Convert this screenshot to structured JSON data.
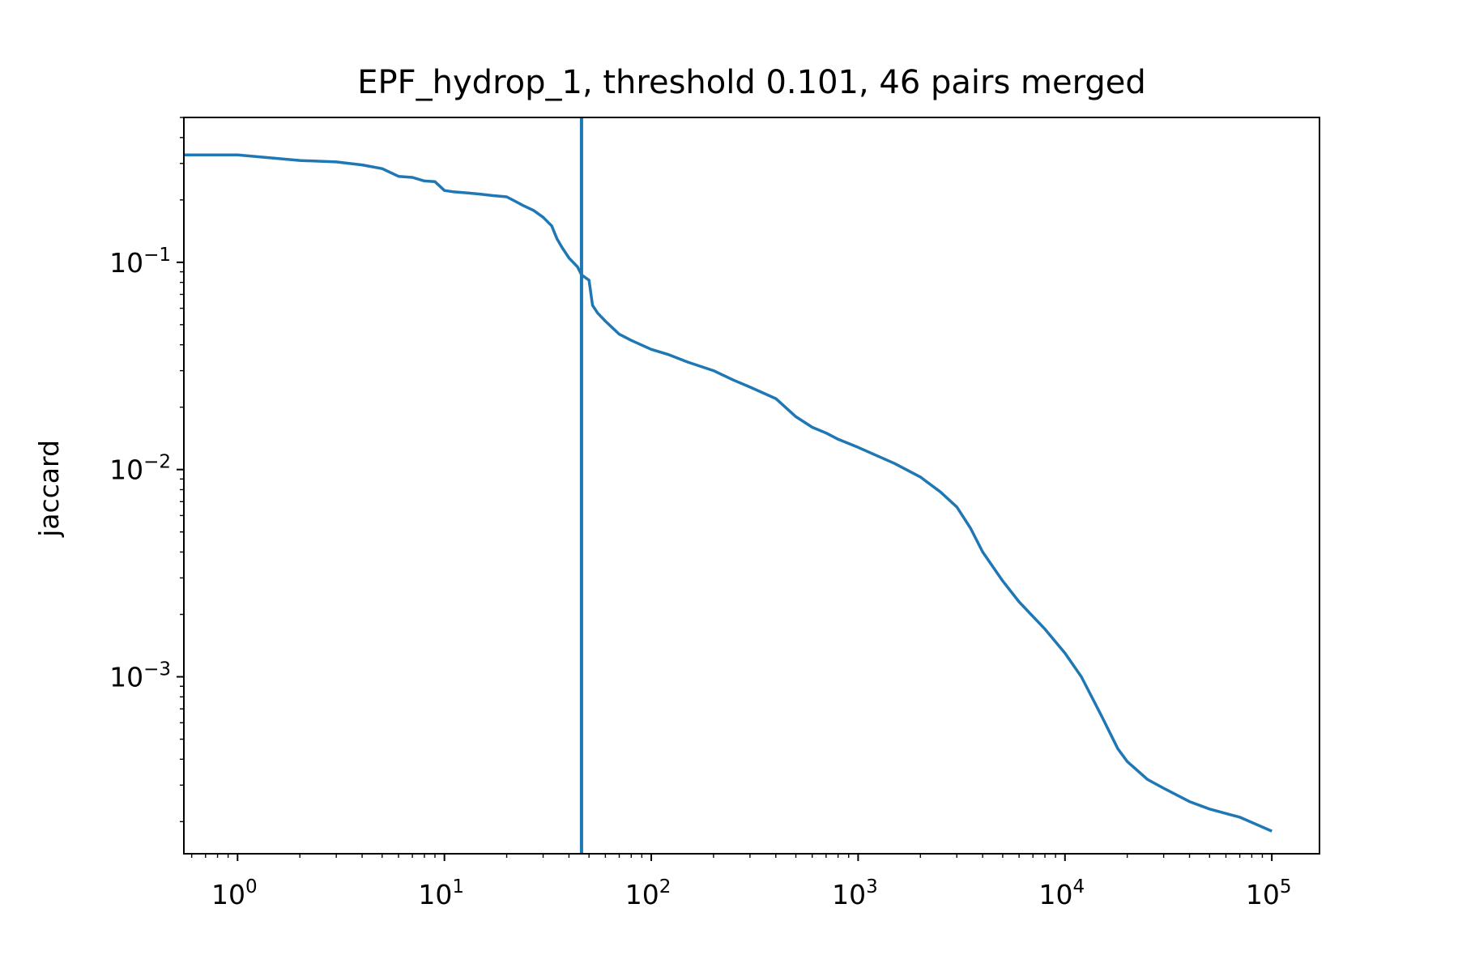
{
  "chart_data": {
    "type": "line",
    "title": "EPF_hydrop_1, threshold 0.101, 46 pairs merged",
    "xlabel": "",
    "ylabel": "jaccard",
    "xscale": "log",
    "yscale": "log",
    "xlim": [
      0.55,
      170000
    ],
    "ylim": [
      0.00014,
      0.5
    ],
    "grid": false,
    "colors": {
      "line": "#1f77b4",
      "axes": "#000000",
      "background": "#ffffff"
    },
    "x_ticks": [
      {
        "value": 1,
        "base": "10",
        "exp": "0"
      },
      {
        "value": 10,
        "base": "10",
        "exp": "1"
      },
      {
        "value": 100,
        "base": "10",
        "exp": "2"
      },
      {
        "value": 1000,
        "base": "10",
        "exp": "3"
      },
      {
        "value": 10000,
        "base": "10",
        "exp": "4"
      },
      {
        "value": 100000,
        "base": "10",
        "exp": "5"
      }
    ],
    "y_ticks": [
      {
        "value": 0.1,
        "base": "10",
        "exp": "−1"
      },
      {
        "value": 0.01,
        "base": "10",
        "exp": "−2"
      },
      {
        "value": 0.001,
        "base": "10",
        "exp": "−3"
      }
    ],
    "threshold_line": {
      "x": 46
    },
    "series": [
      {
        "x": [
          0.55,
          1,
          2,
          3,
          4,
          5,
          6,
          7,
          8,
          9,
          10,
          11,
          13,
          15,
          17,
          20,
          22,
          24,
          27,
          30,
          33,
          35,
          37,
          40,
          44,
          46,
          50,
          52,
          55,
          60,
          70,
          80,
          100,
          120,
          150,
          200,
          250,
          300,
          400,
          500,
          600,
          700,
          800,
          1000,
          1500,
          2000,
          2500,
          3000,
          3500,
          4000,
          5000,
          6000,
          8000,
          10000,
          12000,
          15000,
          18000,
          20000,
          25000,
          30000,
          40000,
          50000,
          70000,
          100000
        ],
        "y": [
          0.33,
          0.33,
          0.31,
          0.305,
          0.295,
          0.283,
          0.26,
          0.257,
          0.247,
          0.245,
          0.222,
          0.219,
          0.216,
          0.213,
          0.21,
          0.207,
          0.197,
          0.188,
          0.178,
          0.165,
          0.15,
          0.13,
          0.118,
          0.105,
          0.095,
          0.087,
          0.082,
          0.062,
          0.057,
          0.052,
          0.045,
          0.042,
          0.038,
          0.036,
          0.033,
          0.03,
          0.027,
          0.025,
          0.022,
          0.018,
          0.016,
          0.015,
          0.014,
          0.0128,
          0.0107,
          0.0092,
          0.0078,
          0.0066,
          0.0052,
          0.004,
          0.0029,
          0.0023,
          0.0017,
          0.0013,
          0.001,
          0.00065,
          0.00045,
          0.00039,
          0.00032,
          0.00029,
          0.00025,
          0.00023,
          0.00021,
          0.00018
        ]
      }
    ]
  }
}
